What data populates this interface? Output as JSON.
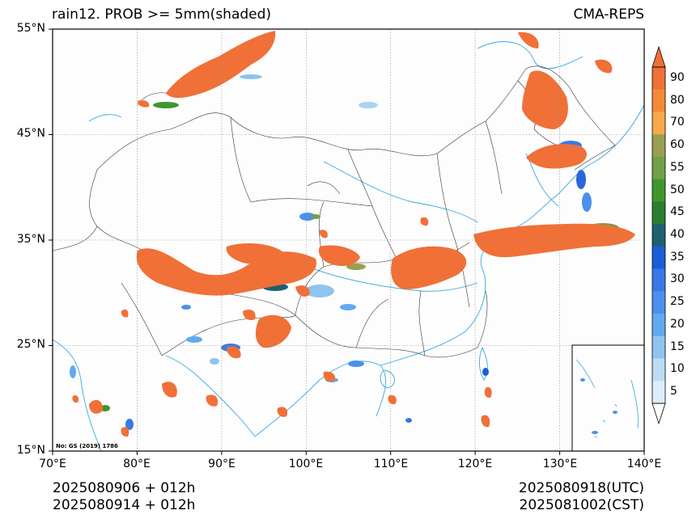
{
  "header": {
    "title_left": "rain12. PROB >= 5mm(shaded)",
    "title_right": "CMA-REPS"
  },
  "map": {
    "lat_ticks": [
      "55°N",
      "45°N",
      "35°N",
      "25°N",
      "15°N"
    ],
    "lon_ticks": [
      "70°E",
      "80°E",
      "90°E",
      "100°E",
      "110°E",
      "120°E",
      "130°E",
      "140°E"
    ],
    "extent": {
      "lon": [
        70,
        140
      ],
      "lat": [
        15,
        55
      ]
    },
    "gridlines": true,
    "inset_map": "South China Sea islands",
    "copyright_note": "No: GS (2019) 1786"
  },
  "colorbar": {
    "levels": [
      "90",
      "80",
      "70",
      "60",
      "55",
      "50",
      "45",
      "40",
      "35",
      "30",
      "25",
      "20",
      "15",
      "10",
      "5"
    ],
    "colors": [
      "#f07038",
      "#f48a38",
      "#f8a848",
      "#98a050",
      "#70a048",
      "#40962e",
      "#2a7e30",
      "#1e6070",
      "#1a5ed8",
      "#3a78e8",
      "#4a90ec",
      "#60aaf0",
      "#90c4f0",
      "#bcdcf4",
      "#dceefa"
    ],
    "extend": "both"
  },
  "footer": {
    "left_line1": "2025080906  +  012h",
    "left_line2": "2025080914  +  012h",
    "right_line1": "2025080918(UTC)",
    "right_line2": "2025081002(CST)"
  }
}
